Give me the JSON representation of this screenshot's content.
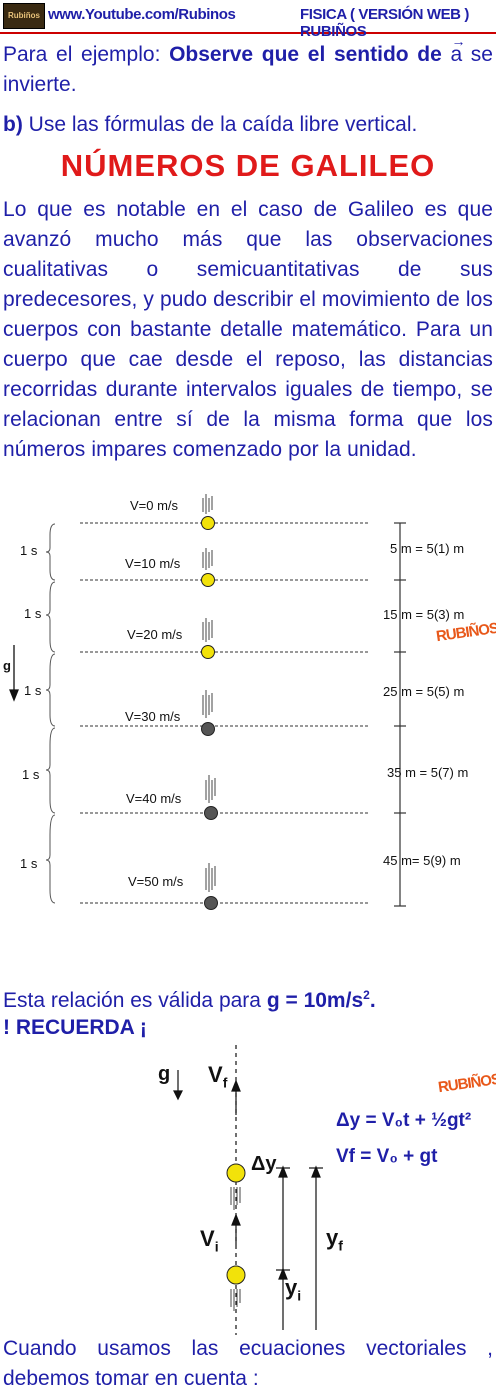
{
  "header": {
    "logo_text": "Rubiños",
    "site": "www.Youtube.com/Rubinos",
    "course": "FISICA ( VERSIÓN WEB ) RUBIÑOS"
  },
  "intro": {
    "lead": "Para el ejemplo: ",
    "bold": "Observe que el sentido de",
    "symbol": "a",
    "tail": " se invierte."
  },
  "part_b": {
    "label": "b)",
    "text": " Use las fórmulas de la caída libre vertical."
  },
  "title": "NÚMEROS DE GALILEO",
  "paragraph": "Lo que es notable en el caso de Galileo es que avanzó mucho más que las observaciones cualitativas o semicuantitativas  de sus predecesores, y pudo describir el movimiento de los cuerpos con bastante detalle matemático. Para un cuerpo que cae desde el reposo, las distancias recorridas durante intervalos iguales de tiempo, se relacionan entre sí de la misma forma que los números impares comenzado por la unidad.",
  "galileo_diagram": {
    "velocities": [
      "V=0 m/s",
      "V=10 m/s",
      "V=20 m/s",
      "V=30 m/s",
      "V=40 m/s",
      "V=50 m/s"
    ],
    "intervals": [
      "1 s",
      "1 s",
      "1 s",
      "1 s",
      "1 s"
    ],
    "distances": [
      "5 m = 5(1) m",
      "15 m = 5(3) m",
      "25 m = 5(5) m",
      "35 m = 5(7) m",
      "45 m= 5(9) m"
    ],
    "gravity_label": "g",
    "watermark": "RUBIÑOS"
  },
  "relation": {
    "text": "Esta relación es válida para  ",
    "value": "g = 10m/s",
    "exp": "2",
    "end": "."
  },
  "recuerda": "! RECUERDA ¡",
  "vector_diagram": {
    "g": "g",
    "vf": "V",
    "vf_sub": "f",
    "vi": "V",
    "vi_sub": "i",
    "dy": "Δy",
    "yf": "y",
    "yf_sub": "f",
    "yi": "y",
    "yi_sub": "i",
    "eq1": "Δy = V₀t + ½gt²",
    "eq2": "Vf = V₀ + gt",
    "watermark": "RUBIÑOS"
  },
  "closing": "Cuando usamos las ecuaciones vectoriales , debemos tomar en cuenta :",
  "colors": {
    "text": "#1f1fa8",
    "title": "#e01a1a",
    "ball_light": "#f2e20a",
    "ball_dark": "#555555"
  }
}
